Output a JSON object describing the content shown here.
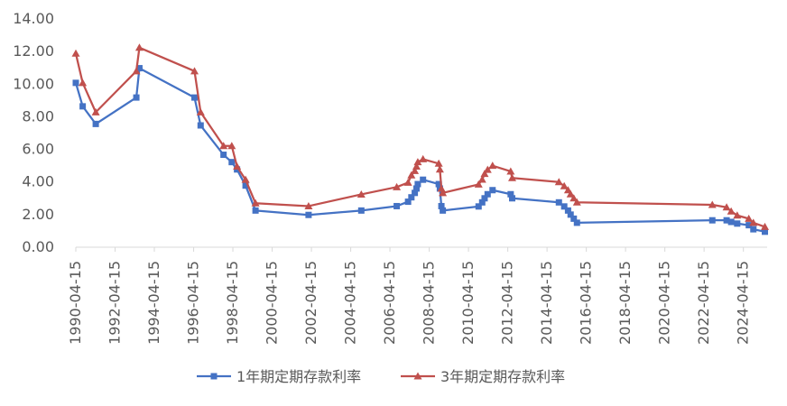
{
  "chart_data": {
    "type": "line",
    "title": "",
    "xlabel": "",
    "ylabel": "",
    "ylim": [
      0,
      14
    ],
    "yticks": [
      "0.00",
      "2.00",
      "4.00",
      "6.00",
      "8.00",
      "10.00",
      "12.00",
      "14.00"
    ],
    "xticks": [
      "1990-04-15",
      "1992-04-15",
      "1994-04-15",
      "1996-04-15",
      "1998-04-15",
      "2000-04-15",
      "2002-04-15",
      "2004-04-15",
      "2006-04-15",
      "2008-04-15",
      "2010-04-15",
      "2012-04-15",
      "2014-04-15",
      "2016-04-15",
      "2018-04-15",
      "2020-04-15",
      "2022-04-15",
      "2024-04-15"
    ],
    "xlim": [
      "1990-04-15",
      "2025-07-01"
    ],
    "grid": false,
    "legend_position": "bottom",
    "series": [
      {
        "name": "1年期定期存款利率",
        "color": "#4472C4",
        "marker": "square",
        "points": [
          [
            "1990-04-15",
            10.08
          ],
          [
            "1990-08-21",
            8.64
          ],
          [
            "1991-04-21",
            7.56
          ],
          [
            "1993-05-15",
            9.18
          ],
          [
            "1993-07-11",
            10.98
          ],
          [
            "1996-05-01",
            9.18
          ],
          [
            "1996-08-23",
            7.47
          ],
          [
            "1997-10-23",
            5.67
          ],
          [
            "1998-03-25",
            5.22
          ],
          [
            "1998-07-01",
            4.77
          ],
          [
            "1998-12-07",
            3.78
          ],
          [
            "1999-06-10",
            2.25
          ],
          [
            "2002-02-21",
            1.98
          ],
          [
            "2004-10-29",
            2.25
          ],
          [
            "2006-08-19",
            2.52
          ],
          [
            "2007-03-18",
            2.79
          ],
          [
            "2007-05-19",
            3.06
          ],
          [
            "2007-07-21",
            3.33
          ],
          [
            "2007-08-22",
            3.6
          ],
          [
            "2007-09-15",
            3.87
          ],
          [
            "2007-12-21",
            4.14
          ],
          [
            "2008-10-09",
            3.87
          ],
          [
            "2008-10-30",
            3.6
          ],
          [
            "2008-11-27",
            2.52
          ],
          [
            "2008-12-23",
            2.25
          ],
          [
            "2010-10-20",
            2.5
          ],
          [
            "2010-12-26",
            2.75
          ],
          [
            "2011-02-09",
            3.0
          ],
          [
            "2011-04-06",
            3.25
          ],
          [
            "2011-07-07",
            3.5
          ],
          [
            "2012-06-08",
            3.25
          ],
          [
            "2012-07-06",
            3.0
          ],
          [
            "2014-11-22",
            2.75
          ],
          [
            "2015-03-01",
            2.5
          ],
          [
            "2015-05-11",
            2.25
          ],
          [
            "2015-06-28",
            2.0
          ],
          [
            "2015-08-26",
            1.75
          ],
          [
            "2015-10-24",
            1.5
          ],
          [
            "2022-09-15",
            1.65
          ],
          [
            "2023-06-08",
            1.65
          ],
          [
            "2023-09-01",
            1.55
          ],
          [
            "2023-12-22",
            1.45
          ],
          [
            "2024-07-25",
            1.35
          ],
          [
            "2024-10-18",
            1.1
          ],
          [
            "2025-05-20",
            0.95
          ]
        ]
      },
      {
        "name": "3年期定期存款利率",
        "color": "#C0504D",
        "marker": "triangle",
        "points": [
          [
            "1990-04-15",
            11.88
          ],
          [
            "1990-08-21",
            10.08
          ],
          [
            "1991-04-21",
            8.28
          ],
          [
            "1993-05-15",
            10.8
          ],
          [
            "1993-07-11",
            12.24
          ],
          [
            "1996-05-01",
            10.8
          ],
          [
            "1996-08-23",
            8.28
          ],
          [
            "1997-10-23",
            6.21
          ],
          [
            "1998-03-25",
            6.21
          ],
          [
            "1998-07-01",
            4.95
          ],
          [
            "1998-12-07",
            4.14
          ],
          [
            "1999-06-10",
            2.7
          ],
          [
            "2002-02-21",
            2.52
          ],
          [
            "2004-10-29",
            3.24
          ],
          [
            "2006-08-19",
            3.69
          ],
          [
            "2007-03-18",
            3.96
          ],
          [
            "2007-05-19",
            4.41
          ],
          [
            "2007-07-21",
            4.68
          ],
          [
            "2007-08-22",
            4.95
          ],
          [
            "2007-09-15",
            5.22
          ],
          [
            "2007-12-21",
            5.4
          ],
          [
            "2008-10-09",
            5.13
          ],
          [
            "2008-10-30",
            4.77
          ],
          [
            "2008-11-27",
            3.6
          ],
          [
            "2008-12-23",
            3.33
          ],
          [
            "2010-10-20",
            3.85
          ],
          [
            "2010-12-26",
            4.15
          ],
          [
            "2011-02-09",
            4.5
          ],
          [
            "2011-04-06",
            4.75
          ],
          [
            "2011-07-07",
            5.0
          ],
          [
            "2012-06-08",
            4.65
          ],
          [
            "2012-07-06",
            4.25
          ],
          [
            "2014-11-22",
            4.0
          ],
          [
            "2015-03-01",
            3.75
          ],
          [
            "2015-05-11",
            3.5
          ],
          [
            "2015-06-28",
            3.25
          ],
          [
            "2015-08-26",
            3.0
          ],
          [
            "2015-10-24",
            2.75
          ],
          [
            "2022-09-15",
            2.6
          ],
          [
            "2023-06-08",
            2.45
          ],
          [
            "2023-09-01",
            2.2
          ],
          [
            "2023-12-22",
            1.95
          ],
          [
            "2024-07-25",
            1.75
          ],
          [
            "2024-10-18",
            1.5
          ],
          [
            "2025-05-20",
            1.25
          ]
        ]
      }
    ]
  }
}
